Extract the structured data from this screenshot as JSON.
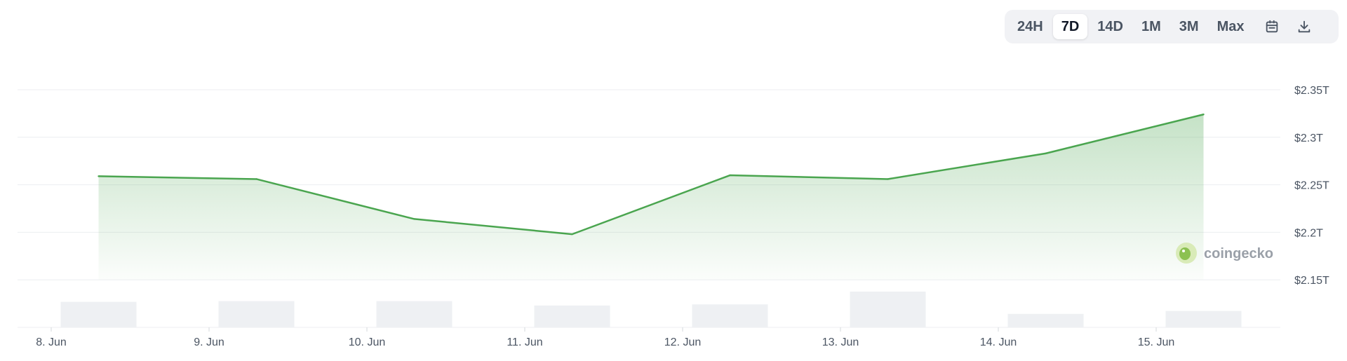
{
  "toolbar": {
    "ranges": [
      "24H",
      "7D",
      "14D",
      "1M",
      "3M",
      "Max"
    ],
    "active_range": "7D",
    "icons": [
      "calendar-icon",
      "download-icon"
    ]
  },
  "watermark": {
    "text": "coingecko"
  },
  "colors": {
    "line": "#4aa54f",
    "volume": "#eef0f3",
    "grid": "#eceef1",
    "active_bg": "#ffffff",
    "toolbar_bg": "#f1f2f5"
  },
  "chart_data": {
    "type": "area",
    "x_ticks": [
      "8. Jun",
      "9. Jun",
      "10. Jun",
      "11. Jun",
      "12. Jun",
      "13. Jun",
      "14. Jun",
      "15. Jun"
    ],
    "y_ticks": [
      "$2.35T",
      "$2.3T",
      "$2.25T",
      "$2.2T",
      "$2.15T"
    ],
    "y_tick_values": [
      2.35,
      2.3,
      2.25,
      2.2,
      2.15
    ],
    "ylim": [
      2.1,
      2.35
    ],
    "y_unit": "T USD",
    "series": [
      {
        "x": [
          "8 Jun 07:00",
          "9 Jun 07:00",
          "10 Jun 07:00",
          "11 Jun 07:00",
          "12 Jun 07:00",
          "13 Jun 07:00",
          "14 Jun 07:00",
          "15 Jun 07:00"
        ],
        "x_days": [
          8.3,
          9.3,
          10.3,
          11.3,
          12.3,
          13.3,
          14.3,
          15.3
        ],
        "values": [
          2.259,
          2.256,
          2.214,
          2.198,
          2.26,
          2.256,
          2.283,
          2.324
        ]
      }
    ],
    "volume": {
      "x_days": [
        8.3,
        9.3,
        10.3,
        11.3,
        12.3,
        13.3,
        14.3,
        15.3
      ],
      "relative_values": [
        0.7,
        0.72,
        0.72,
        0.6,
        0.63,
        0.98,
        0.37,
        0.45
      ]
    },
    "grid": true,
    "legend": "none"
  }
}
